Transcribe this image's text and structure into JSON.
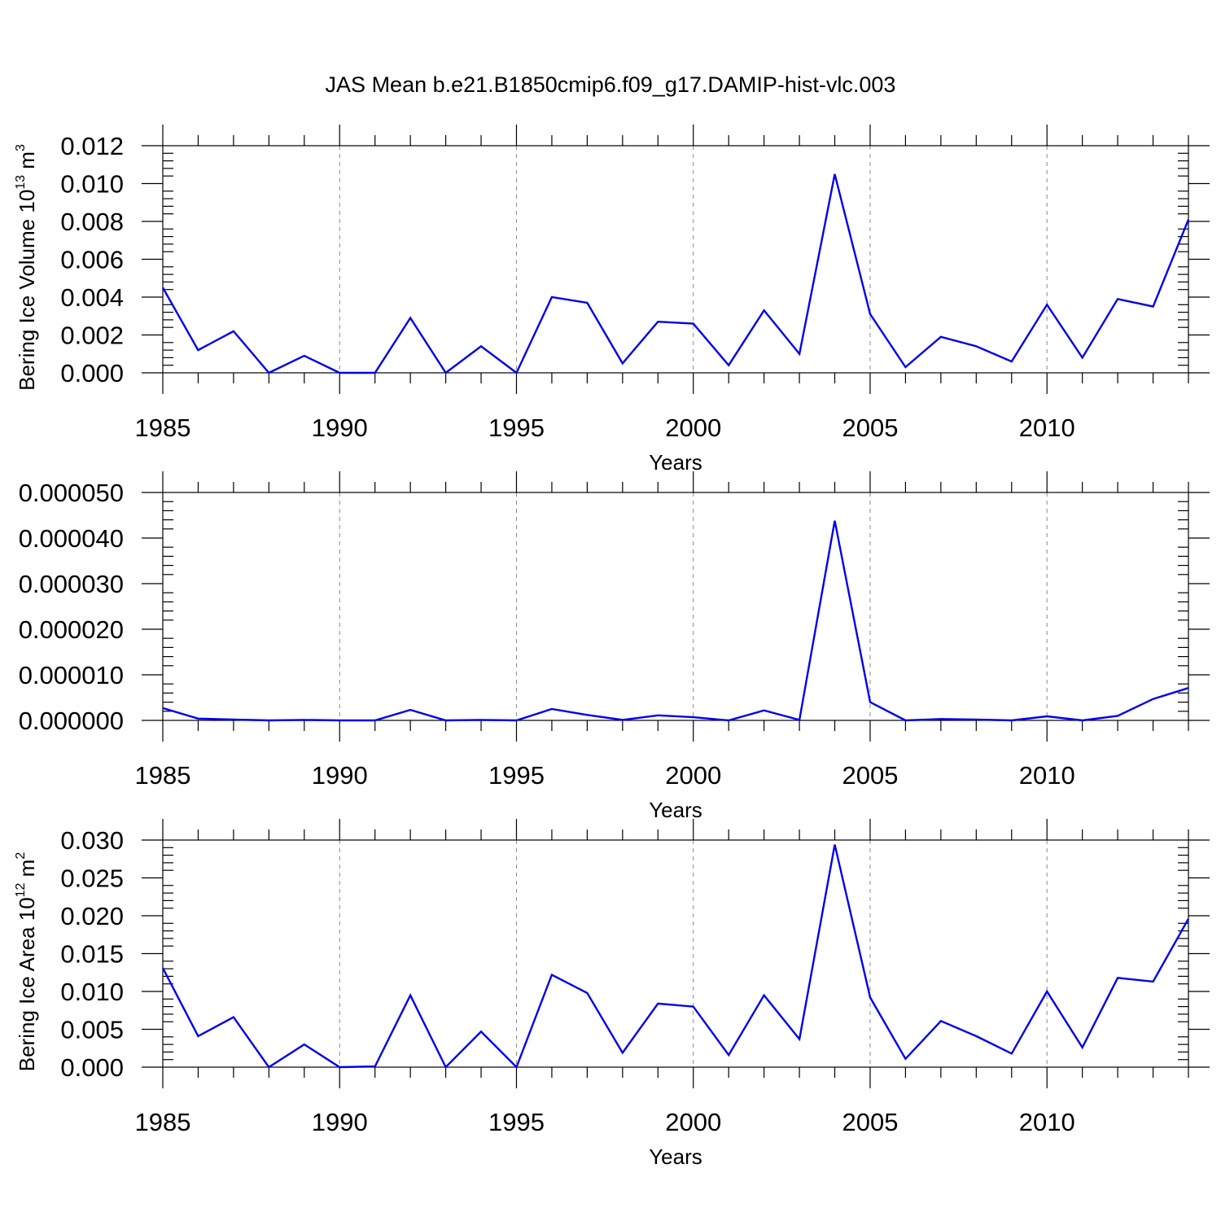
{
  "title": "JAS Mean b.e21.B1850cmip6.f09_g17.DAMIP-hist-vlc.003",
  "colors": {
    "line": "#0000ee",
    "axis": "#000000",
    "grid": "#888888"
  },
  "chart_data": [
    {
      "type": "line",
      "ylabel": "Bering Ice Volume 10",
      "ylabel_sup": "13",
      "ylabel_unit": " m",
      "ylabel_unit_sup": "3",
      "xlabel": "Years",
      "xlim": [
        1985,
        2014
      ],
      "ylim": [
        0,
        0.012
      ],
      "yticks": [
        0.0,
        0.002,
        0.004,
        0.006,
        0.008,
        0.01,
        0.012
      ],
      "ytick_labels": [
        "0.000",
        "0.002",
        "0.004",
        "0.006",
        "0.008",
        "0.010",
        "0.012"
      ],
      "xticks": [
        1985,
        1990,
        1995,
        2000,
        2005,
        2010
      ],
      "xtick_labels": [
        "1985",
        "1990",
        "1995",
        "2000",
        "2005",
        "2010"
      ],
      "x": [
        1985,
        1986,
        1987,
        1988,
        1989,
        1990,
        1991,
        1992,
        1993,
        1994,
        1995,
        1996,
        1997,
        1998,
        1999,
        2000,
        2001,
        2002,
        2003,
        2004,
        2005,
        2006,
        2007,
        2008,
        2009,
        2010,
        2011,
        2012,
        2013,
        2014
      ],
      "values": [
        0.0045,
        0.0012,
        0.0022,
        0.0,
        0.0009,
        0.0,
        0.0,
        0.0029,
        0.0,
        0.0014,
        0.0,
        0.004,
        0.0037,
        0.0005,
        0.0027,
        0.0026,
        0.0004,
        0.0033,
        0.001,
        0.0105,
        0.0031,
        0.0003,
        0.0019,
        0.0014,
        0.0006,
        0.0036,
        0.0008,
        0.0039,
        0.0035,
        0.0081
      ]
    },
    {
      "type": "line",
      "ylabel": "",
      "xlabel": "Years",
      "xlim": [
        1985,
        2014
      ],
      "ylim": [
        0,
        5e-05
      ],
      "yticks": [
        0.0,
        1e-05,
        2e-05,
        3e-05,
        4e-05,
        5e-05
      ],
      "ytick_labels": [
        "0.000000",
        "0.000010",
        "0.000020",
        "0.000030",
        "0.000040",
        "0.000050"
      ],
      "xticks": [
        1985,
        1990,
        1995,
        2000,
        2005,
        2010
      ],
      "xtick_labels": [
        "1985",
        "1990",
        "1995",
        "2000",
        "2005",
        "2010"
      ],
      "x": [
        1985,
        1986,
        1987,
        1988,
        1989,
        1990,
        1991,
        1992,
        1993,
        1994,
        1995,
        1996,
        1997,
        1998,
        1999,
        2000,
        2001,
        2002,
        2003,
        2004,
        2005,
        2006,
        2007,
        2008,
        2009,
        2010,
        2011,
        2012,
        2013,
        2014
      ],
      "values": [
        2.7e-06,
        4e-07,
        2e-07,
        0.0,
        1e-07,
        0.0,
        0.0,
        2.3e-06,
        0.0,
        1e-07,
        0.0,
        2.5e-06,
        1.2e-06,
        1e-07,
        1.1e-06,
        7e-07,
        0.0,
        2.2e-06,
        1e-07,
        4.38e-05,
        4e-06,
        0.0,
        3e-07,
        2e-07,
        0.0,
        9e-07,
        0.0,
        1e-06,
        4.7e-06,
        7.1e-06
      ]
    },
    {
      "type": "line",
      "ylabel": "Bering Ice Area 10",
      "ylabel_sup": "12",
      "ylabel_unit": " m",
      "ylabel_unit_sup": "2",
      "xlabel": "Years",
      "xlim": [
        1985,
        2014
      ],
      "ylim": [
        0,
        0.03
      ],
      "yticks": [
        0.0,
        0.005,
        0.01,
        0.015,
        0.02,
        0.025,
        0.03
      ],
      "ytick_labels": [
        "0.000",
        "0.005",
        "0.010",
        "0.015",
        "0.020",
        "0.025",
        "0.030"
      ],
      "xticks": [
        1985,
        1990,
        1995,
        2000,
        2005,
        2010
      ],
      "xtick_labels": [
        "1985",
        "1990",
        "1995",
        "2000",
        "2005",
        "2010"
      ],
      "x": [
        1985,
        1986,
        1987,
        1988,
        1989,
        1990,
        1991,
        1992,
        1993,
        1994,
        1995,
        1996,
        1997,
        1998,
        1999,
        2000,
        2001,
        2002,
        2003,
        2004,
        2005,
        2006,
        2007,
        2008,
        2009,
        2010,
        2011,
        2012,
        2013,
        2014
      ],
      "values": [
        0.0131,
        0.0041,
        0.0066,
        0.0,
        0.003,
        0.0,
        0.0001,
        0.0095,
        0.0,
        0.0047,
        0.0,
        0.0122,
        0.0098,
        0.0019,
        0.0084,
        0.008,
        0.0016,
        0.0095,
        0.0037,
        0.0294,
        0.0092,
        0.0011,
        0.0061,
        0.0041,
        0.0018,
        0.01,
        0.0026,
        0.0118,
        0.0113,
        0.0196
      ]
    }
  ]
}
